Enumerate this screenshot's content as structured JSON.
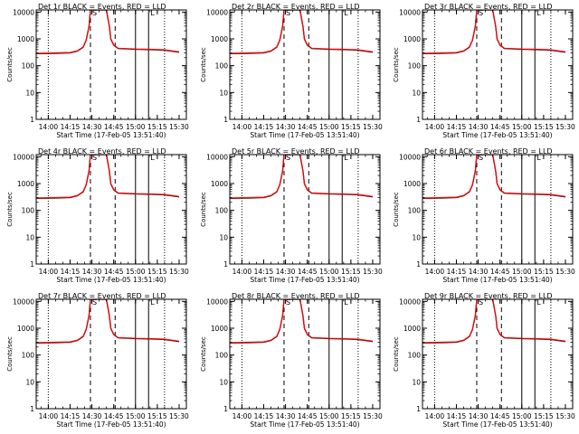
{
  "chart_data": {
    "type": "line",
    "start_time_label": "Start Time (17-Feb-05 13:51:40)",
    "ylabel": "Counts/sec",
    "yscale": "log",
    "ylim": [
      1,
      12000
    ],
    "y_ticks": [
      "1",
      "10",
      "100",
      "1000",
      "10000"
    ],
    "x_ticks": [
      "14:00",
      "14:15",
      "14:30",
      "14:45",
      "15:00",
      "15:15",
      "15:30"
    ],
    "xlim": [
      "13:51:40",
      "15:35:00"
    ],
    "marker_labels": {
      "S": "S",
      "L": "L"
    },
    "colors": {
      "events": "#000000",
      "lld": "#ff0000"
    },
    "series_note_events": "BLACK = Events",
    "series_note_lld": "RED = LLD",
    "panels": [
      {
        "title": "Det 1r  BLACK = Events, RED = LLD"
      },
      {
        "title": "Det 2r  BLACK = Events, RED = LLD"
      },
      {
        "title": "Det 3r  BLACK = Events, RED = LLD"
      },
      {
        "title": "Det 4r  BLACK = Events, RED = LLD"
      },
      {
        "title": "Det 5r  BLACK = Events, RED = LLD"
      },
      {
        "title": "Det 6r  BLACK = Events, RED = LLD"
      },
      {
        "title": "Det 7r  BLACK = Events, RED = LLD"
      },
      {
        "title": "Det 8r  BLACK = Events, RED = LLD"
      },
      {
        "title": "Det 9r  BLACK = Events, RED = LLD"
      }
    ],
    "series": [
      {
        "name": "LLD",
        "color": "#ff0000",
        "x": [
          "13:51:40",
          "14:05",
          "14:15",
          "14:20",
          "14:24",
          "14:26",
          "14:28",
          "14:29",
          "14:40",
          "14:42",
          "14:43",
          "14:45",
          "14:48",
          "15:00",
          "15:10",
          "15:20",
          "15:30"
        ],
        "y": [
          290,
          300,
          310,
          360,
          500,
          900,
          3000,
          12000,
          12000,
          3000,
          1000,
          600,
          450,
          420,
          410,
          390,
          330
        ]
      },
      {
        "name": "Events",
        "color": "#000000",
        "x": [
          "13:51:40",
          "14:05",
          "14:15",
          "14:20",
          "14:24",
          "14:26",
          "14:28",
          "14:29",
          "14:40",
          "14:42",
          "14:43",
          "14:45",
          "14:48",
          "15:00",
          "15:10",
          "15:20",
          "15:30"
        ],
        "y": [
          280,
          290,
          300,
          350,
          490,
          880,
          2900,
          12000,
          12000,
          2900,
          980,
          580,
          440,
          410,
          400,
          380,
          320
        ]
      }
    ],
    "vertical_markers": [
      {
        "x": "14:00",
        "style": "dotted"
      },
      {
        "x": "14:29",
        "style": "dashed"
      },
      {
        "x": "14:46",
        "style": "dashed"
      },
      {
        "x": "15:00",
        "style": "solid"
      },
      {
        "x": "15:09",
        "style": "solid"
      },
      {
        "x": "15:20",
        "style": "dotted"
      }
    ]
  }
}
